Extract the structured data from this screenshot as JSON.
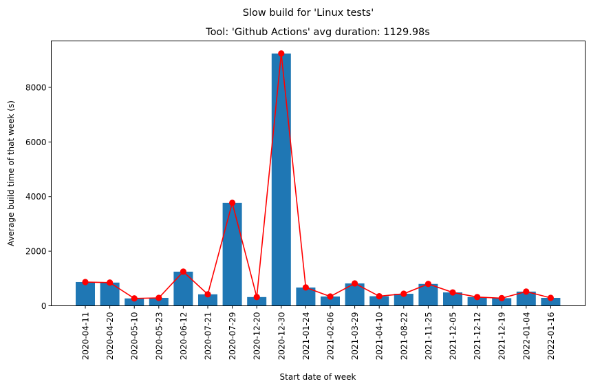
{
  "chart_data": {
    "type": "bar",
    "suptitle": "Slow build for 'Linux tests'",
    "title": "Tool: 'Github Actions' avg duration: 1129.98s",
    "xlabel": "Start date of week",
    "ylabel": "Average build time of that week (s)",
    "ylim": [
      0,
      9700
    ],
    "yticks": [
      0,
      2000,
      4000,
      6000,
      8000
    ],
    "ytick_labels": [
      "0",
      "2000",
      "4000",
      "6000",
      "8000"
    ],
    "grid": false,
    "categories": [
      "2020-04-11",
      "2020-04-20",
      "2020-05-10",
      "2020-05-23",
      "2020-06-12",
      "2020-07-21",
      "2020-07-29",
      "2020-12-20",
      "2020-12-30",
      "2021-01-24",
      "2021-02-06",
      "2021-03-29",
      "2021-04-10",
      "2021-08-22",
      "2021-11-25",
      "2021-12-05",
      "2021-12-12",
      "2021-12-19",
      "2022-01-04",
      "2022-01-16"
    ],
    "series": [
      {
        "kind": "bar",
        "color": "#1f77b4",
        "values": [
          870,
          850,
          270,
          290,
          1250,
          420,
          3770,
          320,
          9240,
          670,
          340,
          820,
          350,
          440,
          800,
          490,
          320,
          280,
          520,
          290
        ]
      },
      {
        "kind": "line",
        "color": "#ff0000",
        "marker": "circle",
        "values": [
          870,
          850,
          270,
          290,
          1250,
          420,
          3770,
          320,
          9240,
          670,
          340,
          820,
          350,
          440,
          800,
          490,
          320,
          280,
          520,
          290
        ]
      }
    ]
  }
}
